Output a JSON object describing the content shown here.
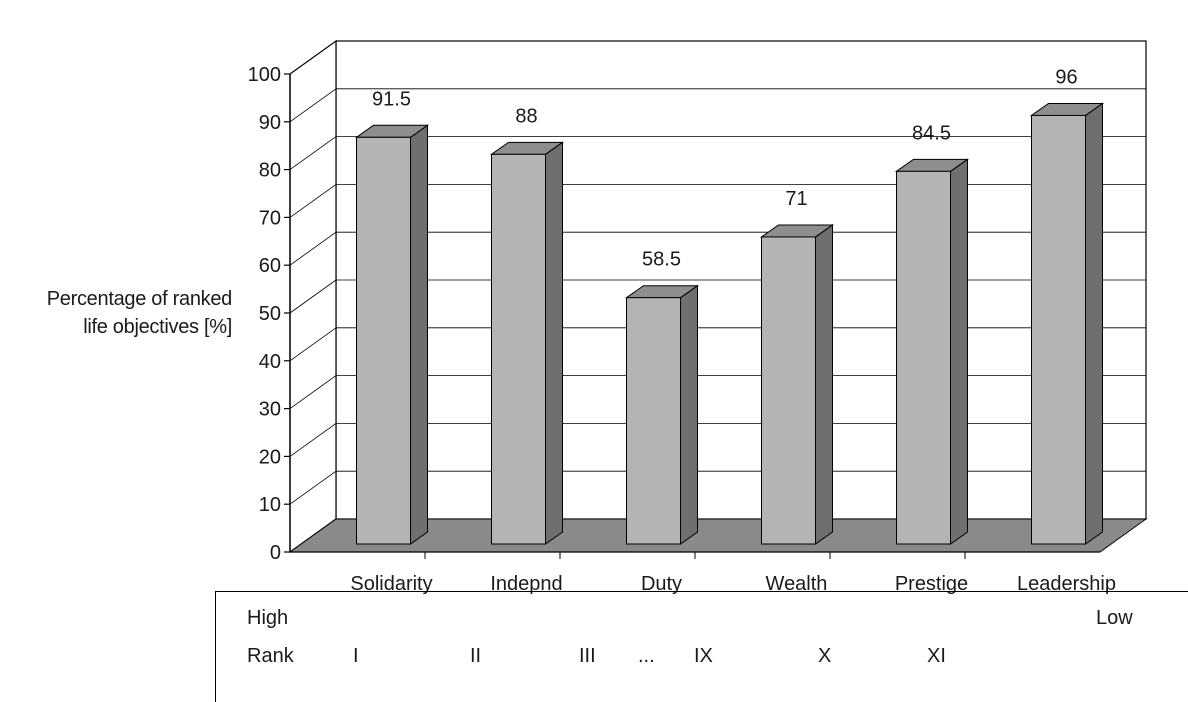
{
  "chart_data": {
    "type": "bar",
    "categories": [
      "Solidarity",
      "Indepnd",
      "Duty",
      "Wealth",
      "Prestige",
      "Leadership"
    ],
    "values": [
      91.5,
      88,
      58.5,
      71,
      84.5,
      96
    ],
    "data_labels": [
      "91.5",
      "88",
      "58.5",
      "71",
      "84.5",
      "96"
    ],
    "title": "",
    "xlabel": "",
    "ylabel_lines": [
      "Percentage of ranked",
      "life objectives [%]"
    ],
    "ylim": [
      0,
      100
    ],
    "yticks": [
      "0",
      "10",
      "20",
      "30",
      "40",
      "50",
      "60",
      "70",
      "80",
      "90",
      "100"
    ],
    "grid": true,
    "three_d": true,
    "colors": {
      "bar_front": "#b4b4b4",
      "bar_top": "#8e8e8e",
      "bar_side": "#6f6f6f",
      "floor": "#8a8a8a"
    }
  },
  "rank_strip": {
    "high": "High",
    "low": "Low",
    "rank_label": "Rank",
    "ranks": [
      "I",
      "II",
      "III",
      "...",
      "IX",
      "X",
      "XI"
    ]
  }
}
